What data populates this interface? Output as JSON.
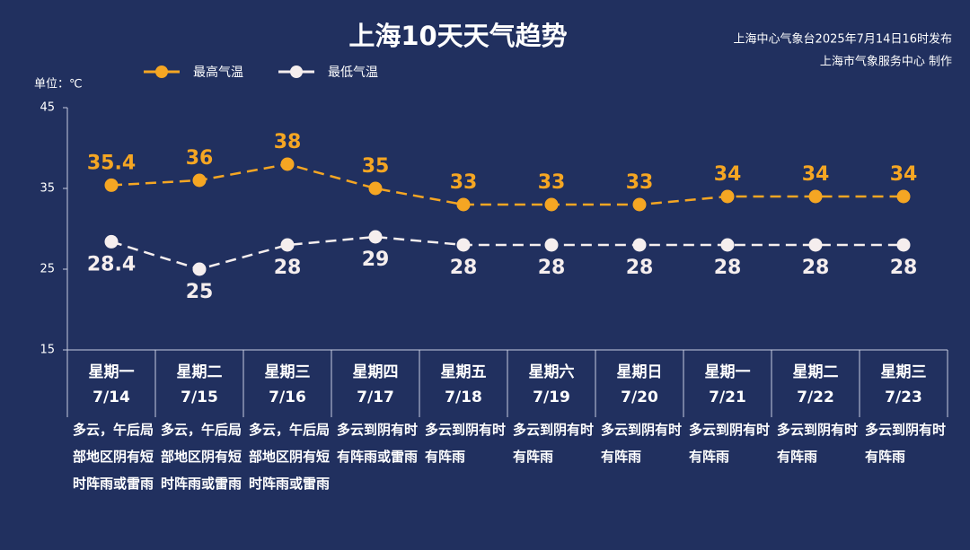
{
  "chart_data": {
    "type": "line",
    "title": "上海10天天气趋势",
    "subtitle": [
      "上海中心气象台2025年7月14日16时发布",
      "上海市气象服务中心 制作"
    ],
    "y_label": "单位：℃",
    "weekdays": [
      "星期一",
      "星期二",
      "星期三",
      "星期四",
      "星期五",
      "星期六",
      "星期日",
      "星期一",
      "星期二",
      "星期三"
    ],
    "categories": [
      "7/14",
      "7/15",
      "7/16",
      "7/17",
      "7/18",
      "7/19",
      "7/20",
      "7/21",
      "7/22",
      "7/23"
    ],
    "descriptions": [
      "多云，午后局部地区阴有短时阵雨或雷雨",
      "多云，午后局部地区阴有短时阵雨或雷雨",
      "多云，午后局部地区阴有短时阵雨或雷雨",
      "多云到阴有时有阵雨或雷雨",
      "多云到阴有时有阵雨",
      "多云到阴有时有阵雨",
      "多云到阴有时有阵雨",
      "多云到阴有时有阵雨",
      "多云到阴有时有阵雨",
      "多云到阴有时有阵雨"
    ],
    "series": [
      {
        "name": "最高气温",
        "color": "#f5a623",
        "values": [
          35.4,
          36,
          38,
          35,
          33,
          33,
          33,
          34,
          34,
          34
        ]
      },
      {
        "name": "最低气温",
        "color": "#f5eeee",
        "values": [
          28.4,
          25,
          28,
          29,
          28,
          28,
          28,
          28,
          28,
          28
        ]
      }
    ],
    "ylim": [
      15,
      45
    ],
    "yticks": [
      15,
      25,
      35,
      45
    ],
    "grid": false
  }
}
